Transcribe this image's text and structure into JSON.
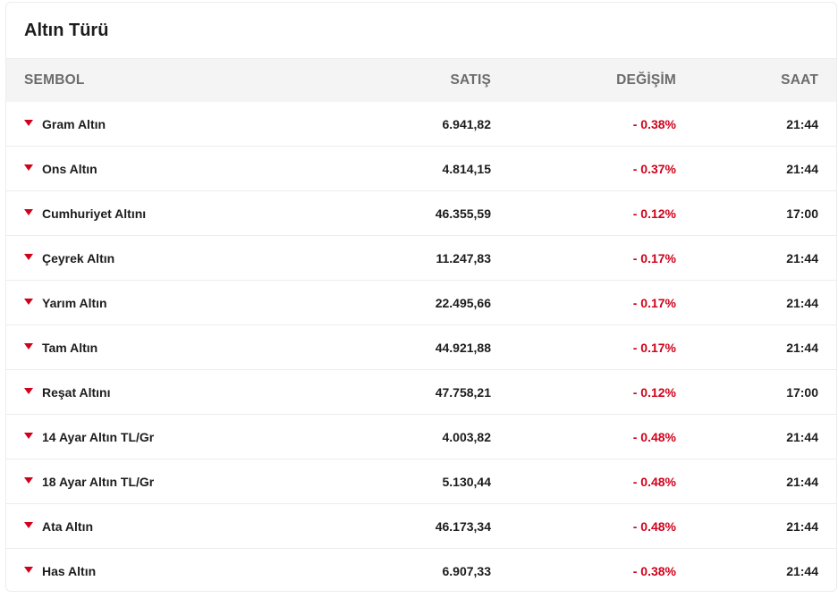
{
  "card": {
    "title": "Altın Türü"
  },
  "table": {
    "headers": {
      "symbol": "SEMBOL",
      "sale": "SATIŞ",
      "change": "DEĞİŞİM",
      "time": "SAAT"
    },
    "rows": [
      {
        "name": "Gram Altın",
        "sale": "6.941,82",
        "change": "- 0.38%",
        "time": "21:44"
      },
      {
        "name": "Ons Altın",
        "sale": "4.814,15",
        "change": "- 0.37%",
        "time": "21:44"
      },
      {
        "name": "Cumhuriyet Altını",
        "sale": "46.355,59",
        "change": "- 0.12%",
        "time": "17:00"
      },
      {
        "name": "Çeyrek Altın",
        "sale": "11.247,83",
        "change": "- 0.17%",
        "time": "21:44"
      },
      {
        "name": "Yarım Altın",
        "sale": "22.495,66",
        "change": "- 0.17%",
        "time": "21:44"
      },
      {
        "name": "Tam Altın",
        "sale": "44.921,88",
        "change": "- 0.17%",
        "time": "21:44"
      },
      {
        "name": "Reşat Altını",
        "sale": "47.758,21",
        "change": "- 0.12%",
        "time": "17:00"
      },
      {
        "name": "14 Ayar Altın TL/Gr",
        "sale": "4.003,82",
        "change": "- 0.48%",
        "time": "21:44"
      },
      {
        "name": "18 Ayar Altın TL/Gr",
        "sale": "5.130,44",
        "change": "- 0.48%",
        "time": "21:44"
      },
      {
        "name": "Ata Altın",
        "sale": "46.173,34",
        "change": "- 0.48%",
        "time": "21:44"
      },
      {
        "name": "Has Altın",
        "sale": "6.907,33",
        "change": "- 0.38%",
        "time": "21:44"
      }
    ]
  },
  "icons": {
    "trend": "triangle-down-icon"
  },
  "colors": {
    "negative": "#d0021b",
    "header_bg": "#f4f4f4",
    "header_text": "#6b6b6b",
    "divider": "#ececec"
  }
}
